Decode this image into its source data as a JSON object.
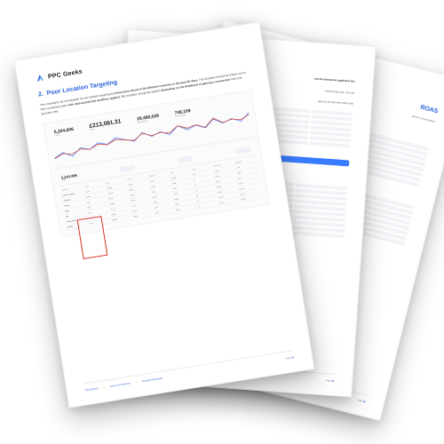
{
  "brand": {
    "name": "PPC Geeks",
    "logo_colors": {
      "left": "#2b62d9",
      "right": "#6db9ff"
    }
  },
  "front": {
    "section_number": "2.",
    "section_title": "Poor Location Targeting",
    "paragraph_html": "The campaigns we investigated do use location targeting but <b>have been shown in 84 different countries in the past 30 days</b>. The locations should be broken out to their constituent parts <b>with data-backed bid modifiers applied</b>. Bid modifiers should be applied <b>depending on the likelihood of gaining a conversion</b> from that granular area.",
    "dashboard": {
      "metric_left": {
        "value": "5,204,606",
        "label": "Clicks"
      },
      "metric_main": {
        "value": "£213,081.31",
        "label": "Cost"
      },
      "metric_mid": {
        "value": "29,480,029",
        "label": "Impressions"
      },
      "metric_right": {
        "value": "746,109",
        "label": "Conversions"
      },
      "chart": {
        "line1_color": "#4f86f7",
        "line2_color": "#d44b3d",
        "points1": [
          8,
          12,
          7,
          14,
          11,
          16,
          13,
          18,
          15,
          12,
          19,
          14,
          17,
          13,
          20,
          15,
          18,
          14,
          21,
          16,
          19,
          15,
          22
        ],
        "points2": [
          4,
          6,
          5,
          7,
          6,
          8,
          7,
          9,
          8,
          7,
          10,
          8,
          9,
          8,
          11,
          9,
          10,
          8,
          12,
          9,
          10,
          9,
          11
        ]
      },
      "summary": {
        "value": "5,203.99K",
        "label": "Cost"
      },
      "table": {
        "headers": [
          "Location",
          "Clicks",
          "Impr.",
          "CTR",
          "Avg CPC",
          "Cost",
          "Conv.",
          "Conv rate",
          "Cost/conv"
        ],
        "rows": [
          [
            "United Kingdom",
            "3,213",
            "41,023",
            "7.83%",
            "£0.41",
            "£1,318",
            "186",
            "5.79%",
            "£7.09"
          ],
          [
            "Germany",
            "1,041",
            "18,332",
            "5.68%",
            "£0.38",
            "£396",
            "41",
            "3.94%",
            "£9.66"
          ],
          [
            "France",
            "818",
            "16,821",
            "4.86%",
            "£0.42",
            "£344",
            "32",
            "3.91%",
            "£10.74"
          ],
          [
            "Spain",
            "624",
            "14,090",
            "4.43%",
            "£0.39",
            "£243",
            "24",
            "3.85%",
            "£10.14"
          ],
          [
            "Italy",
            "512",
            "13,777",
            "3.72%",
            "£0.40",
            "£205",
            "18",
            "3.52%",
            "£11.38"
          ],
          [
            "Netherlands",
            "408",
            "12,602",
            "3.24%",
            "£0.41",
            "£167",
            "14",
            "3.43%",
            "£11.94"
          ],
          [
            "Ireland",
            "347",
            "12,064",
            "2.88%",
            "£0.43",
            "£149",
            "11",
            "3.17%",
            "£13.55"
          ]
        ],
        "highlight": {
          "top_row": 0,
          "rows": 7,
          "col_start": 0,
          "col_end": 1
        }
      }
    },
    "footer": {
      "links": [
        "PPC Experts",
        "Grow Your Business",
        "Exceptional Results"
      ],
      "page_label": "Page",
      "page_number": "14"
    }
  },
  "mid": {
    "title_fragment": "ant ad extensions applied to the",
    "subtitle_fragment": "click-through rate. This will",
    "note_fragment": "ngs you can get more clicks and",
    "footer_page": "16"
  },
  "back": {
    "title_fragment": "ROAS",
    "line_fragment": "perform overall above",
    "footer_page": "18"
  },
  "colors": {
    "title": "#2b62d9",
    "text": "#444444",
    "shadow": "rgba(0,0,0,0.28)",
    "highlight_box": "#d93025"
  }
}
